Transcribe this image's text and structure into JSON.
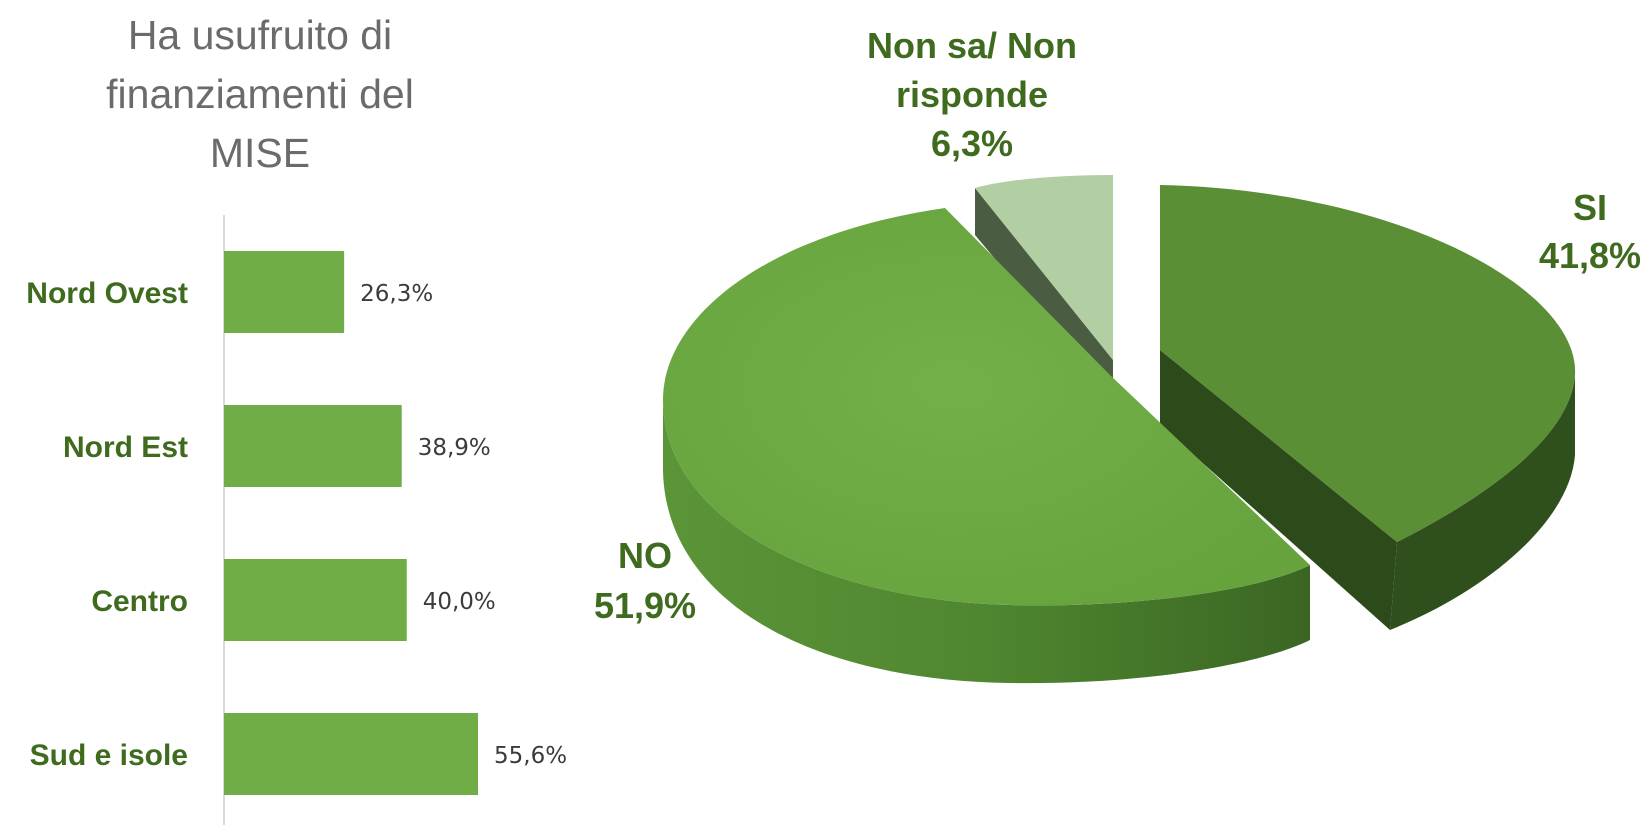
{
  "chart_data": [
    {
      "type": "bar",
      "orientation": "horizontal",
      "title_lines": [
        "Ha usufruito di",
        "finanziamenti del",
        "MISE"
      ],
      "categories": [
        "Nord Ovest",
        "Nord Est",
        "Centro",
        "Sud e isole"
      ],
      "values": [
        26.3,
        38.9,
        40.0,
        55.6
      ],
      "value_labels": [
        "26,3%",
        "38,9%",
        "40,0%",
        "55,6%"
      ],
      "unit": "%",
      "xlim": [
        0,
        100
      ],
      "color": "#70ad47"
    },
    {
      "type": "pie",
      "style": "3d-exploded",
      "slices": [
        {
          "name": "SI",
          "value": 41.8,
          "label": "41,8%",
          "color": "#5a8f35"
        },
        {
          "name": "NO",
          "value": 51.9,
          "label": "51,9%",
          "color": "#6fab47"
        },
        {
          "name_lines": [
            "Non sa/ Non",
            "risponde"
          ],
          "value": 6.3,
          "label": "6,3%",
          "color": "#b2cfa3"
        }
      ]
    }
  ]
}
